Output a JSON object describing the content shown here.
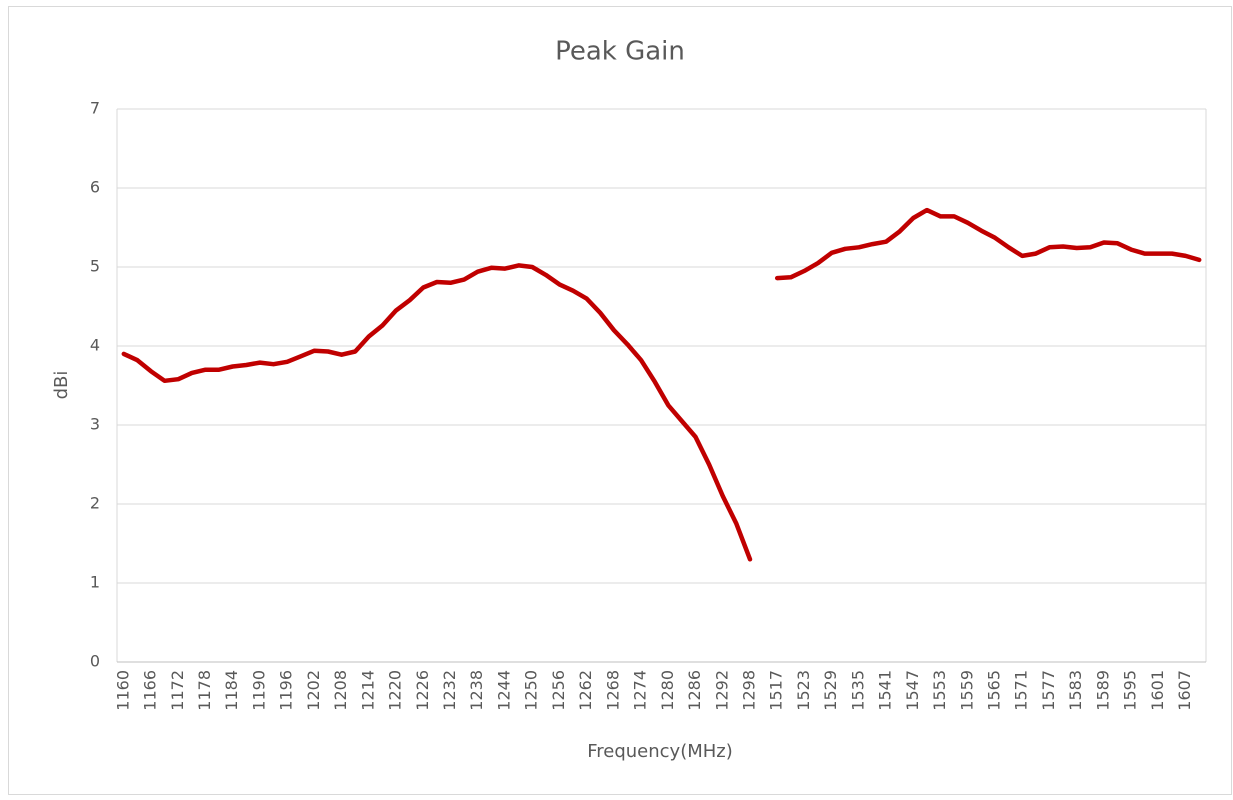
{
  "chart_data": {
    "type": "line",
    "title": "Peak Gain",
    "x_label": "Frequency(MHz)",
    "y_label": "dBi",
    "categories": [
      "1160",
      null,
      "1166",
      null,
      "1172",
      null,
      "1178",
      null,
      "1184",
      null,
      "1190",
      null,
      "1196",
      null,
      "1202",
      null,
      "1208",
      null,
      "1214",
      null,
      "1220",
      null,
      "1226",
      null,
      "1232",
      null,
      "1238",
      null,
      "1244",
      null,
      "1250",
      null,
      "1256",
      null,
      "1262",
      null,
      "1268",
      null,
      "1274",
      null,
      "1280",
      null,
      "1286",
      null,
      "1292",
      null,
      "1298",
      null,
      "1517",
      null,
      "1523",
      null,
      "1529",
      null,
      "1535",
      null,
      "1541",
      null,
      "1547",
      null,
      "1553",
      null,
      "1559",
      null,
      "1565",
      null,
      "1571",
      null,
      "1577",
      null,
      "1583",
      null,
      "1589",
      null,
      "1595",
      null,
      "1601",
      null,
      "1607",
      null
    ],
    "series": [
      {
        "name": "Peak Gain",
        "color": "#c00000",
        "values": [
          3.9,
          3.82,
          3.68,
          3.56,
          3.58,
          3.66,
          3.7,
          3.7,
          3.74,
          3.76,
          3.79,
          3.77,
          3.8,
          3.87,
          3.94,
          3.93,
          3.89,
          3.93,
          4.12,
          4.26,
          4.45,
          4.58,
          4.74,
          4.81,
          4.8,
          4.84,
          4.94,
          4.99,
          4.98,
          5.02,
          5.0,
          4.9,
          4.78,
          4.7,
          4.6,
          4.42,
          4.2,
          4.02,
          3.82,
          3.55,
          3.25,
          3.05,
          2.85,
          2.5,
          2.1,
          1.75,
          1.3,
          null,
          4.86,
          4.87,
          4.95,
          5.05,
          5.18,
          5.23,
          5.25,
          5.29,
          5.32,
          5.45,
          5.62,
          5.72,
          5.64,
          5.64,
          5.56,
          5.46,
          5.37,
          5.25,
          5.14,
          5.17,
          5.25,
          5.26,
          5.24,
          5.25,
          5.31,
          5.3,
          5.22,
          5.17,
          5.17,
          5.17,
          5.14,
          5.09
        ]
      }
    ],
    "ylim": [
      0,
      7
    ],
    "yticks": [
      0,
      1,
      2,
      3,
      4,
      5,
      6,
      7
    ],
    "grid": true
  }
}
